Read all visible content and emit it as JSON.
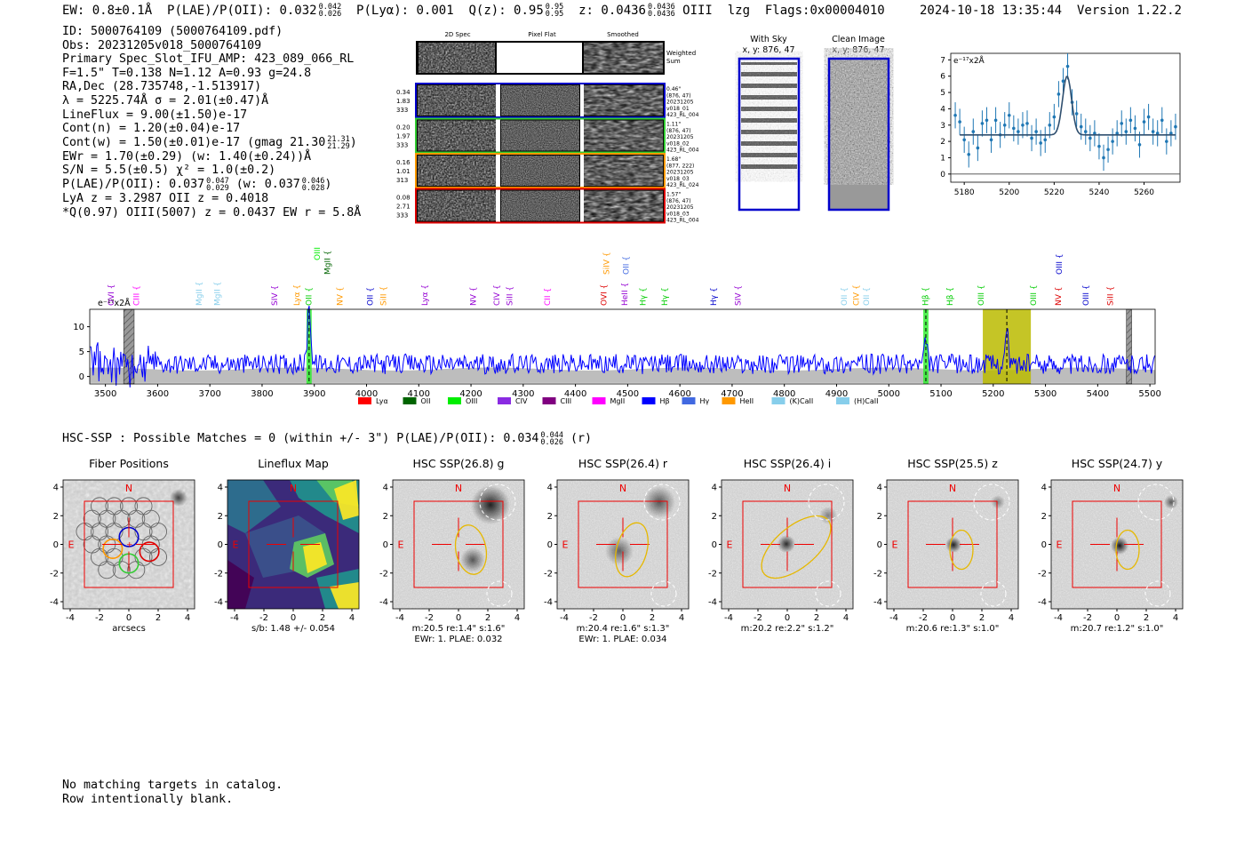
{
  "header": {
    "ew": "EW: 0.8±0.1Å",
    "plae_label": "P(LAE)/P(OII): 0.032",
    "plae_hi": "0.042",
    "plae_lo": "0.026",
    "plya": "P(Lyα): 0.001",
    "qz_label": "Q(z): 0.95",
    "qz_hi": "0.95",
    "qz_lo": "0.95",
    "z_label": "z: 0.0436",
    "z_hi": "0.0436",
    "z_lo": "0.0436",
    "z_line": "OIII",
    "lzg": "lzg",
    "flags": "Flags:0x00004010",
    "datetime": "2024-10-18 13:35:44",
    "version": "Version 1.22.2"
  },
  "info": {
    "id": "ID: 5000764109 (5000764109.pdf)",
    "obs": "Obs: 20231205v018_5000764109",
    "primary": "Primary Spec_Slot_IFU_AMP: 423_089_066_RL",
    "fwhm": "F=1.5\"  T=0.138  N=1.12  A=0.93  g=24.8",
    "radec": "RA,Dec (28.735748,-1.513917)",
    "lambda": "λ = 5225.74Å  σ = 2.01(±0.47)Å",
    "lineflux": "LineFlux = 9.00(±1.50)e-17",
    "contn": "Cont(n) = 1.20(±0.04)e-17",
    "contw": "Cont(w) = 1.50(±0.01)e-17 (gmag 21.30",
    "gmag_hi": "21.31",
    "gmag_lo": "21.29",
    "ewr": "EWr = 1.70(±0.29) (w: 1.40(±0.24))Å",
    "sn": "S/N = 5.5(±0.5)  χ² = 1.0(±0.2)",
    "plae2": "P(LAE)/P(OII): 0.037",
    "plae2_hi": "0.047",
    "plae2_lo": "0.029",
    "plae2_w": "(w: 0.037",
    "plae2_w_hi": "0.046",
    "plae2_w_lo": "0.028",
    "lya": "LyA z = 3.2987  OII z = 0.4018",
    "qoiii": "*Q(0.97) OIII(5007) z = 0.0437  EW r = 5.8Å"
  },
  "spec_panel": {
    "col_labels": [
      "2D Spec",
      "Pixel Flat",
      "Smoothed"
    ],
    "weighted": "Weighted",
    "sum": "Sum",
    "rows": [
      {
        "w1": "0.34",
        "w2": "1.83",
        "w3": "333",
        "n1": "0.46\"",
        "n2": "(876, 47)",
        "n3": "20231205",
        "n4": "v018_01",
        "n5": "423_RL_004",
        "color": "#0000cc"
      },
      {
        "w1": "0.20",
        "w2": "1.97",
        "w3": "333",
        "n1": "1.11\"",
        "n2": "(876, 47)",
        "n3": "20231205",
        "n4": "v018_02",
        "n5": "423_RL_004",
        "color": "#33cc33"
      },
      {
        "w1": "0.16",
        "w2": "1.01",
        "w3": "313",
        "n1": "1.68\"",
        "n2": "(877, 222)",
        "n3": "20231205",
        "n4": "v018_03",
        "n5": "423_RL_024",
        "color": "#ff9900"
      },
      {
        "w1": "0.08",
        "w2": "2.71",
        "w3": "333",
        "n1": "1.57\"",
        "n2": "(876, 47)",
        "n3": "20231205",
        "n4": "v018_03",
        "n5": "423_RL_004",
        "color": "#dd0000"
      }
    ]
  },
  "sky_panels": {
    "with_sky": "With Sky",
    "with_sky_xy": "x, y: 876, 47",
    "clean": "Clean Image",
    "clean_xy": "x, y: 876, 47"
  },
  "colors": {
    "blue": "#1f77b4",
    "spectrum": "#0000ff",
    "red": "#ff0000",
    "olive": "#bbbb00",
    "green_band": "#33ee33"
  },
  "chart_data": [
    {
      "type": "scatter",
      "title": "",
      "ylabel_unit": "e⁻¹⁷x2Å",
      "x": [
        5176,
        5178,
        5180,
        5182,
        5184,
        5186,
        5188,
        5190,
        5192,
        5194,
        5196,
        5198,
        5200,
        5202,
        5204,
        5206,
        5208,
        5210,
        5212,
        5214,
        5216,
        5218,
        5220,
        5222,
        5224,
        5226,
        5228,
        5230,
        5232,
        5234,
        5236,
        5238,
        5240,
        5242,
        5244,
        5246,
        5248,
        5250,
        5252,
        5254,
        5256,
        5258,
        5260,
        5262,
        5264,
        5266,
        5268,
        5270,
        5272,
        5274
      ],
      "y": [
        3.6,
        3.2,
        2.1,
        1.2,
        2.6,
        1.6,
        3.1,
        3.3,
        2.1,
        3.3,
        2.4,
        3.0,
        3.6,
        2.8,
        2.6,
        3.0,
        3.1,
        2.2,
        2.6,
        1.9,
        2.1,
        3.0,
        3.5,
        4.9,
        5.7,
        6.6,
        4.4,
        3.7,
        2.9,
        2.6,
        2.2,
        2.5,
        1.7,
        1.0,
        1.5,
        2.0,
        2.5,
        3.1,
        2.6,
        3.3,
        2.8,
        1.8,
        3.2,
        3.5,
        2.6,
        2.5,
        3.3,
        2.0,
        2.5,
        2.9
      ],
      "err": 0.8,
      "model": {
        "continuum": 2.4,
        "amplitude": 3.6,
        "center": 5225.74,
        "sigma": 2.01
      },
      "xlim": [
        5174,
        5276
      ],
      "ylim": [
        -0.5,
        7.4
      ],
      "xticks": [
        5180,
        5200,
        5220,
        5240,
        5260
      ],
      "yticks": [
        0,
        1,
        2,
        3,
        4,
        5,
        6,
        7
      ]
    },
    {
      "type": "line",
      "title": "",
      "ylabel_unit": "e⁻¹⁷x2Å",
      "xlim": [
        3470,
        5510
      ],
      "ylim": [
        -1.5,
        13.5
      ],
      "xticks": [
        3500,
        3600,
        3700,
        3800,
        3900,
        4000,
        4100,
        4200,
        4300,
        4400,
        4500,
        4600,
        4700,
        4800,
        4900,
        5000,
        5100,
        5200,
        5300,
        5400,
        5500
      ],
      "yticks": [
        0,
        5,
        10
      ],
      "spectrum_noise": 2.0,
      "spectrum_baseline": 2.5,
      "features": [
        {
          "center": 3890,
          "amp": 12.5,
          "width": 3
        },
        {
          "center": 5071,
          "amp": 4.2,
          "width": 3
        },
        {
          "center": 5226,
          "amp": 6.5,
          "width": 3
        }
      ],
      "markers": [
        {
          "label": "OVI",
          "x": 3512,
          "color": "#9400d3",
          "level": 1
        },
        {
          "label": "CIII",
          "x": 3560,
          "color": "#ff00ff",
          "level": 1
        },
        {
          "label": "MgII",
          "x": 3680,
          "color": "#87ceeb",
          "level": 1
        },
        {
          "label": "MgII",
          "x": 3715,
          "color": "#87ceeb",
          "level": 1
        },
        {
          "label": "SIV",
          "x": 3825,
          "color": "#9400d3",
          "level": 1
        },
        {
          "label": "Lyα",
          "x": 3867,
          "color": "#ff9900",
          "level": 1
        },
        {
          "label": "OII",
          "x": 3890,
          "color": "#00cc00",
          "level": 1
        },
        {
          "label": "OIII",
          "x": 3906,
          "color": "#00ee00",
          "level": 3
        },
        {
          "label": "MgII",
          "x": 3926,
          "color": "#006400",
          "level": 2
        },
        {
          "label": "NV",
          "x": 3950,
          "color": "#ff9900",
          "level": 1
        },
        {
          "label": "OII",
          "x": 4008,
          "color": "#0000cc",
          "level": 1
        },
        {
          "label": "SiII",
          "x": 4033,
          "color": "#ff9900",
          "level": 1
        },
        {
          "label": "Lyα",
          "x": 4112,
          "color": "#9400d3",
          "level": 1
        },
        {
          "label": "NV",
          "x": 4205,
          "color": "#9400d3",
          "level": 1
        },
        {
          "label": "CIV",
          "x": 4250,
          "color": "#9400d3",
          "level": 1
        },
        {
          "label": "SiII",
          "x": 4275,
          "color": "#9400d3",
          "level": 1
        },
        {
          "label": "CII",
          "x": 4347,
          "color": "#ff00ff",
          "level": 1
        },
        {
          "label": "OVI",
          "x": 4455,
          "color": "#dd0000",
          "level": 1
        },
        {
          "label": "SiIV",
          "x": 4460,
          "color": "#ff9900",
          "level": 2
        },
        {
          "label": "HeII",
          "x": 4495,
          "color": "#9400d3",
          "level": 1
        },
        {
          "label": "OII",
          "x": 4498,
          "color": "#4169e1",
          "level": 2
        },
        {
          "label": "Hγ",
          "x": 4530,
          "color": "#00cc00",
          "level": 1
        },
        {
          "label": "Hγ",
          "x": 4572,
          "color": "#00cc00",
          "level": 1
        },
        {
          "label": "Hγ",
          "x": 4665,
          "color": "#0000cc",
          "level": 1
        },
        {
          "label": "SIV",
          "x": 4712,
          "color": "#9400d3",
          "level": 1
        },
        {
          "label": "OII",
          "x": 4915,
          "color": "#87ceeb",
          "level": 1
        },
        {
          "label": "CIV",
          "x": 4938,
          "color": "#ff9900",
          "level": 1
        },
        {
          "label": "OII",
          "x": 4958,
          "color": "#87ceeb",
          "level": 1
        },
        {
          "label": "Hβ",
          "x": 5071,
          "color": "#00cc00",
          "level": 1
        },
        {
          "label": "Hβ",
          "x": 5118,
          "color": "#00cc00",
          "level": 1
        },
        {
          "label": "OIII",
          "x": 5177,
          "color": "#00cc00",
          "level": 1
        },
        {
          "label": "OIII",
          "x": 5278,
          "color": "#00cc00",
          "level": 1
        },
        {
          "label": "NV",
          "x": 5325,
          "color": "#dd0000",
          "level": 1
        },
        {
          "label": "OIII",
          "x": 5327,
          "color": "#0000cc",
          "level": 2
        },
        {
          "label": "OIII",
          "x": 5378,
          "color": "#0000cc",
          "level": 1
        },
        {
          "label": "SiII",
          "x": 5425,
          "color": "#dd0000",
          "level": 1
        }
      ],
      "highlight_bands": [
        {
          "from": 3885,
          "to": 3895,
          "color": "#33ee33"
        },
        {
          "from": 5066,
          "to": 5076,
          "color": "#33ee33"
        },
        {
          "from": 5180,
          "to": 5272,
          "color": "#bbbb00"
        }
      ],
      "hatched_bands": [
        {
          "from": 3535,
          "to": 3555
        },
        {
          "from": 5455,
          "to": 5465
        }
      ],
      "legend": [
        {
          "label": "Lyα",
          "color": "#ff0000"
        },
        {
          "label": "OII",
          "color": "#006400"
        },
        {
          "label": "OIII",
          "color": "#00ee00"
        },
        {
          "label": "CIV",
          "color": "#8a2be2"
        },
        {
          "label": "CIII",
          "color": "#800080"
        },
        {
          "label": "MgII",
          "color": "#ff00ff"
        },
        {
          "label": "Hβ",
          "color": "#0000ff"
        },
        {
          "label": "Hγ",
          "color": "#4169e1"
        },
        {
          "label": "HeII",
          "color": "#ff9900"
        },
        {
          "label": "(K)CaII",
          "color": "#87ceeb"
        },
        {
          "label": "(H)CaII",
          "color": "#87ceeb"
        }
      ]
    }
  ],
  "hsc": {
    "title": "HSC-SSP : Possible Matches = 0 (within +/- 3\")  P(LAE)/P(OII): 0.034",
    "hi": "0.044",
    "lo": "0.026",
    "suffix": "(r)"
  },
  "cutouts": [
    {
      "title": "Fiber Positions",
      "cap1": "arcsecs",
      "cap2": "",
      "kind": "fiber"
    },
    {
      "title": "Lineflux Map",
      "cap1": "s/b: 1.48 +/- 0.054",
      "cap2": "",
      "kind": "lineflux"
    },
    {
      "title": "HSC SSP(26.8) g",
      "cap1": "m:20.5  re:1.4\"  s:1.6\"",
      "cap2": "EWr: 1. PLAE: 0.032",
      "kind": "g"
    },
    {
      "title": "HSC SSP(26.4) r",
      "cap1": "m:20.4  re:1.6\"  s:1.3\"",
      "cap2": "EWr: 1. PLAE: 0.034",
      "kind": "r"
    },
    {
      "title": "HSC SSP(26.4) i",
      "cap1": "m:20.2  re:2.2\"  s:1.2\"",
      "cap2": "",
      "kind": "i"
    },
    {
      "title": "HSC SSP(25.5) z",
      "cap1": "m:20.6  re:1.3\"  s:1.0\"",
      "cap2": "",
      "kind": "z"
    },
    {
      "title": "HSC SSP(24.7) y",
      "cap1": "m:20.7  re:1.2\"  s:1.0\"",
      "cap2": "",
      "kind": "y"
    }
  ],
  "cutout_axes": {
    "ticks": [
      "-4",
      "-2",
      "0",
      "2",
      "4"
    ],
    "yticks": [
      "4",
      "2",
      "0",
      "-2",
      "-4"
    ],
    "n": "N",
    "e": "E"
  },
  "footer": {
    "line1": "No matching targets in catalog.",
    "line2": "Row intentionally blank."
  }
}
